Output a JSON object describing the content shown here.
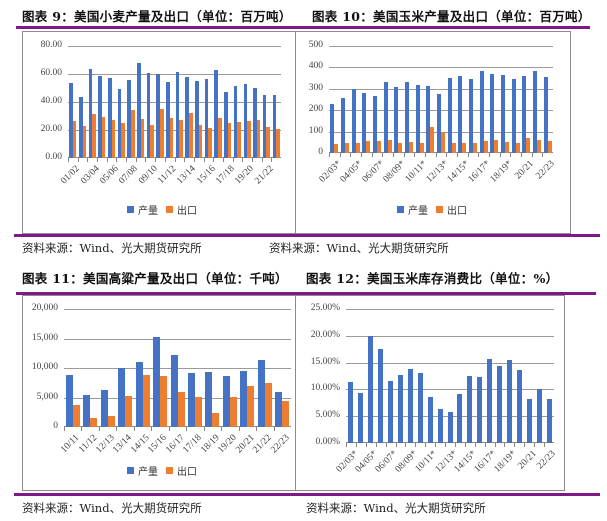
{
  "colors": {
    "production": "#4472c4",
    "export": "#ed7d31",
    "rule": "#7d1a87"
  },
  "charts": [
    {
      "title": "图表 9：美国小麦产量及出口（单位：百万吨）",
      "source": "资料来源：Wind、光大期货研究所",
      "legend": [
        "产量",
        "出口"
      ],
      "yticks": [
        "80.00",
        "60.00",
        "40.00",
        "20.00",
        "0.00"
      ],
      "xlabels": [
        "01/02",
        "03/04",
        "05/06",
        "07/08",
        "09/10",
        "11/12",
        "13/14",
        "15/16",
        "17/18",
        "19/20",
        "21/22"
      ]
    },
    {
      "title": "图表 10：美国玉米产量及出口（单位：百万吨）",
      "source": "资料来源：Wind、光大期货研究所",
      "legend": [
        "产量",
        "出口"
      ],
      "yticks": [
        "500",
        "400",
        "300",
        "200",
        "100",
        "0"
      ],
      "xlabels": [
        "02/03*",
        "04/05*",
        "06/07*",
        "08/09*",
        "10/11*",
        "12/13*",
        "14/15*",
        "16/17*",
        "18/19*",
        "20/21",
        "22/23"
      ]
    },
    {
      "title": "图表 11：美国高粱产量及出口（单位：千吨）",
      "source": "资料来源：Wind、光大期货研究所",
      "legend": [
        "产量",
        "出口"
      ],
      "yticks": [
        "20,000",
        "15,000",
        "10,000",
        "5,000",
        "0"
      ],
      "xlabels": [
        "10/11",
        "11/12",
        "12/13",
        "13/14",
        "14/15",
        "15/16",
        "16/17",
        "17/18",
        "18/19",
        "19/20",
        "20/21",
        "21/22",
        "22/23"
      ]
    },
    {
      "title": "图表 12：美国玉米库存消费比（单位：%）",
      "source": "资料来源：Wind、光大期货研究所",
      "yticks": [
        "25.00%",
        "20.00%",
        "15.00%",
        "10.00%",
        "5.00%",
        "0.00%"
      ],
      "xlabels": [
        "02/03*",
        "04/05*",
        "06/07*",
        "08/09*",
        "10/11*",
        "12/13*",
        "14/15*",
        "16/17*",
        "18/19*",
        "20/21",
        "22/23"
      ]
    }
  ],
  "chart_data": [
    {
      "type": "bar",
      "title": "图表 9：美国小麦产量及出口（单位：百万吨）",
      "xlabel": "",
      "ylabel": "百万吨",
      "ylim": [
        0,
        80
      ],
      "grid": true,
      "legend_position": "bottom",
      "categories": [
        "01/02",
        "02/03",
        "03/04",
        "04/05",
        "05/06",
        "06/07",
        "07/08",
        "08/09",
        "09/10",
        "10/11",
        "11/12",
        "12/13",
        "13/14",
        "14/15",
        "15/16",
        "16/17",
        "17/18",
        "18/19",
        "19/20",
        "20/21",
        "21/22",
        "22/23"
      ],
      "series": [
        {
          "name": "产量",
          "values": [
            53.3,
            43.7,
            63.8,
            58.7,
            57.2,
            49.2,
            55.8,
            68.0,
            60.4,
            60.1,
            54.4,
            61.3,
            58.1,
            55.1,
            56.1,
            62.8,
            47.4,
            51.3,
            52.6,
            49.8,
            44.8,
            44.9
          ]
        },
        {
          "name": "出口",
          "values": [
            26.2,
            23.1,
            31.5,
            29.0,
            27.3,
            24.7,
            34.4,
            27.6,
            23.9,
            35.1,
            28.6,
            27.5,
            32.0,
            23.5,
            21.2,
            28.7,
            24.7,
            25.5,
            26.3,
            27.0,
            21.9,
            21.0
          ]
        }
      ]
    },
    {
      "type": "bar",
      "title": "图表 10：美国玉米产量及出口（单位：百万吨）",
      "xlabel": "",
      "ylabel": "百万吨",
      "ylim": [
        0,
        500
      ],
      "grid": true,
      "legend_position": "bottom",
      "categories": [
        "02/03*",
        "03/04*",
        "04/05*",
        "05/06*",
        "06/07*",
        "07/08*",
        "08/09*",
        "09/10*",
        "10/11*",
        "11/12*",
        "12/13*",
        "13/14*",
        "14/15*",
        "15/16*",
        "16/17*",
        "17/18*",
        "18/19*",
        "19/20*",
        "20/21",
        "21/22",
        "22/23"
      ],
      "series": [
        {
          "name": "产量",
          "values": [
            228,
            256,
            300,
            282,
            268,
            331,
            307,
            332,
            316,
            313,
            274,
            351,
            361,
            346,
            385,
            371,
            364,
            346,
            358,
            382,
            354
          ]
        },
        {
          "name": "出口",
          "values": [
            40,
            48,
            46,
            55,
            54,
            62,
            47,
            51,
            46,
            120,
            98,
            49,
            47,
            45,
            58,
            62,
            52,
            45,
            70,
            63,
            54
          ]
        }
      ]
    },
    {
      "type": "bar",
      "title": "图表 11：美国高粱产量及出口（单位：千吨）",
      "xlabel": "",
      "ylabel": "千吨",
      "ylim": [
        0,
        20000
      ],
      "grid": true,
      "legend_position": "bottom",
      "categories": [
        "10/11",
        "11/12",
        "12/13",
        "13/14",
        "14/15",
        "15/16",
        "16/17",
        "17/18",
        "18/19",
        "19/20",
        "20/21",
        "21/22",
        "22/23"
      ],
      "series": [
        {
          "name": "产量",
          "values": [
            8800,
            5400,
            6300,
            10000,
            11000,
            15200,
            12200,
            9200,
            9300,
            8700,
            9500,
            11400,
            5900
          ]
        },
        {
          "name": "出口",
          "values": [
            3800,
            1600,
            1900,
            5300,
            8900,
            8700,
            6000,
            5100,
            2300,
            5100,
            7000,
            7500,
            4400
          ]
        }
      ]
    },
    {
      "type": "bar",
      "title": "图表 12：美国玉米库存消费比（单位：%）",
      "xlabel": "",
      "ylabel": "%",
      "ylim": [
        0,
        25
      ],
      "grid": true,
      "legend_position": "none",
      "categories": [
        "02/03*",
        "03/04*",
        "04/05*",
        "05/06*",
        "06/07*",
        "07/08*",
        "08/09*",
        "09/10*",
        "10/11*",
        "11/12*",
        "12/13*",
        "13/14*",
        "14/15*",
        "15/16*",
        "16/17*",
        "17/18*",
        "18/19*",
        "19/20*",
        "20/21",
        "21/22",
        "22/23"
      ],
      "series": [
        {
          "name": "库存消费比",
          "values": [
            11.4,
            9.4,
            19.9,
            17.5,
            11.6,
            12.7,
            13.8,
            13.1,
            8.6,
            6.3,
            5.8,
            9.1,
            12.5,
            12.4,
            15.6,
            14.4,
            15.5,
            13.7,
            8.3,
            10.0,
            8.3
          ]
        }
      ]
    }
  ]
}
